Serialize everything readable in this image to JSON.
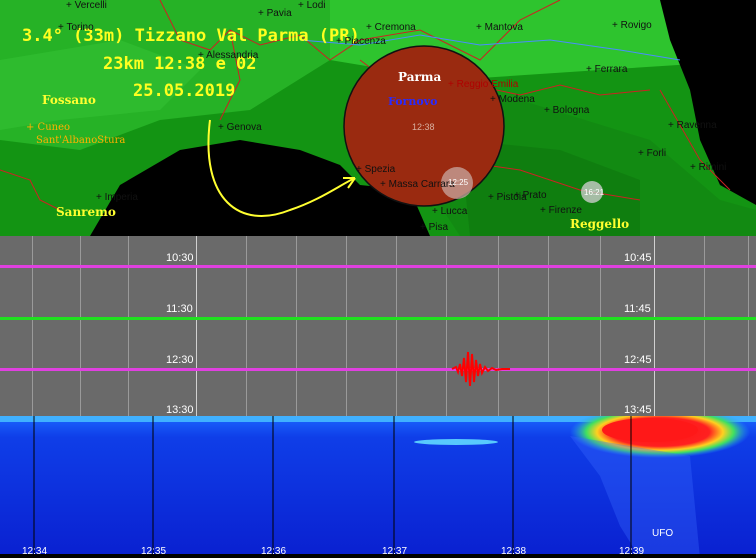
{
  "header": {
    "line1": "3.4° (33m) Tizzano Val Parma (PR)",
    "line2": "23km 12:38 e 02",
    "line3": "25.05.2019"
  },
  "map": {
    "circle_label_top": "Parma",
    "circle_label_mid": "Fornovo",
    "circle_time": "12:38",
    "small_circle_1": "12:25",
    "small_circle_2": "16:21",
    "big_labels": [
      "Fossano",
      "Sanremo",
      "Reggello"
    ],
    "orange_labels": [
      "+ Cuneo",
      "Sant'AlbanoStura"
    ],
    "cities": [
      "+ Vercelli",
      "+ Pavia",
      "+ Lodi",
      "+ Torino",
      "+ Cremona",
      "+ Mantova",
      "+ Rovigo",
      "+ Alessandria",
      "+ Piacenza",
      "+ Ferrara",
      "+ Reggio Emilia",
      "+ Modena",
      "+ Bologna",
      "+ Ravenna",
      "+ Genova",
      "+ Forli",
      "+ Rimini",
      "+ Imperia",
      "+ Spezia",
      "+ Massa Carrara",
      "+ Lucca",
      "+ Pistoia",
      "+ Prato",
      "+ Firenze",
      "+ Pisa"
    ]
  },
  "seismogram": {
    "left_times": [
      "10:30",
      "11:30",
      "12:30",
      "13:30"
    ],
    "right_times": [
      "10:45",
      "11:45",
      "12:45",
      "13:45"
    ],
    "line_colors": [
      "#e040e0",
      "#20e020",
      "#e040e0"
    ],
    "event_color": "#ff0000"
  },
  "spectrogram": {
    "x_labels": [
      "12:34",
      "12:35",
      "12:36",
      "12:37",
      "12:38",
      "12:39"
    ],
    "note": "UFO"
  }
}
